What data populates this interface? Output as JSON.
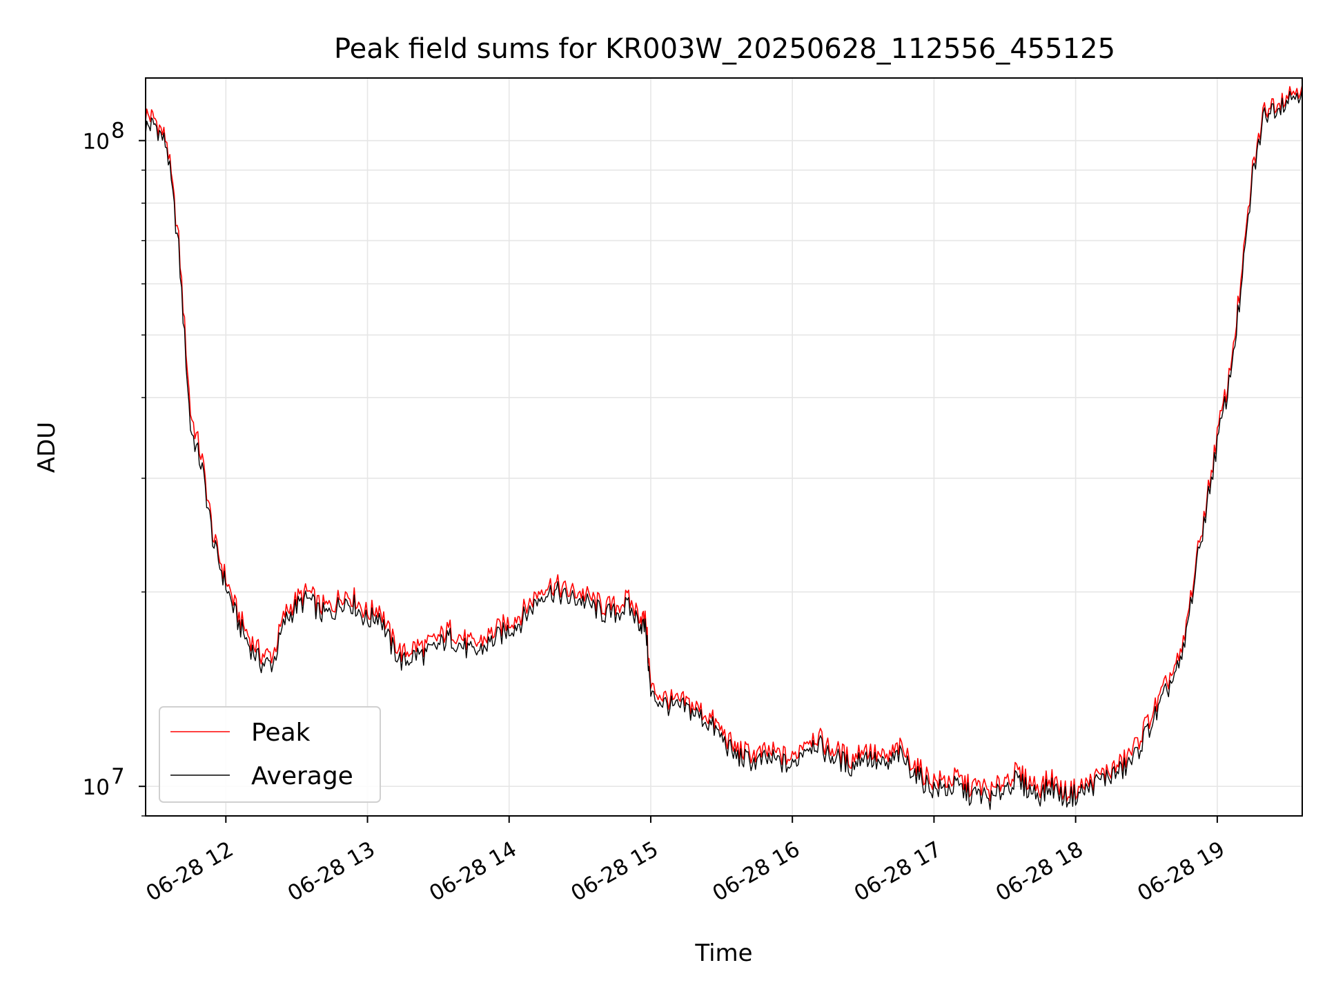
{
  "chart_data": {
    "type": "line",
    "title": "Peak field sums for KR003W_20250628_112556_455125",
    "xlabel": "Time",
    "ylabel": "ADU",
    "yscale": "log",
    "ylim": [
      9000000,
      125000000
    ],
    "xlim": [
      "2025-06-28 11:26",
      "2025-06-28 19:36"
    ],
    "x_ticks": [
      {
        "at": "2025-06-28 12:00",
        "label": "06-28 12"
      },
      {
        "at": "2025-06-28 13:00",
        "label": "06-28 13"
      },
      {
        "at": "2025-06-28 14:00",
        "label": "06-28 14"
      },
      {
        "at": "2025-06-28 15:00",
        "label": "06-28 15"
      },
      {
        "at": "2025-06-28 16:00",
        "label": "06-28 16"
      },
      {
        "at": "2025-06-28 17:00",
        "label": "06-28 17"
      },
      {
        "at": "2025-06-28 18:00",
        "label": "06-28 18"
      },
      {
        "at": "2025-06-28 19:00",
        "label": "06-28 19"
      }
    ],
    "y_major_ticks": [
      {
        "value": 10000000,
        "base": "10",
        "exp": "7"
      },
      {
        "value": 100000000,
        "base": "10",
        "exp": "8"
      }
    ],
    "grid": true,
    "legend_position": "lower-left",
    "x": [
      "2025-06-28 11:26",
      "2025-06-28 11:30",
      "2025-06-28 11:35",
      "2025-06-28 11:40",
      "2025-06-28 11:45",
      "2025-06-28 11:50",
      "2025-06-28 11:55",
      "2025-06-28 12:00",
      "2025-06-28 12:05",
      "2025-06-28 12:10",
      "2025-06-28 12:15",
      "2025-06-28 12:20",
      "2025-06-28 12:25",
      "2025-06-28 12:30",
      "2025-06-28 12:35",
      "2025-06-28 12:40",
      "2025-06-28 12:45",
      "2025-06-28 12:50",
      "2025-06-28 12:55",
      "2025-06-28 13:00",
      "2025-06-28 13:05",
      "2025-06-28 13:10",
      "2025-06-28 13:15",
      "2025-06-28 13:20",
      "2025-06-28 13:25",
      "2025-06-28 13:30",
      "2025-06-28 13:35",
      "2025-06-28 13:40",
      "2025-06-28 13:45",
      "2025-06-28 13:50",
      "2025-06-28 13:55",
      "2025-06-28 14:00",
      "2025-06-28 14:05",
      "2025-06-28 14:10",
      "2025-06-28 14:15",
      "2025-06-28 14:20",
      "2025-06-28 14:25",
      "2025-06-28 14:30",
      "2025-06-28 14:35",
      "2025-06-28 14:40",
      "2025-06-28 14:45",
      "2025-06-28 14:50",
      "2025-06-28 14:55",
      "2025-06-28 14:58",
      "2025-06-28 15:00",
      "2025-06-28 15:05",
      "2025-06-28 15:10",
      "2025-06-28 15:15",
      "2025-06-28 15:20",
      "2025-06-28 15:25",
      "2025-06-28 15:30",
      "2025-06-28 15:35",
      "2025-06-28 15:40",
      "2025-06-28 15:45",
      "2025-06-28 15:50",
      "2025-06-28 15:55",
      "2025-06-28 16:00",
      "2025-06-28 16:05",
      "2025-06-28 16:10",
      "2025-06-28 16:15",
      "2025-06-28 16:20",
      "2025-06-28 16:25",
      "2025-06-28 16:30",
      "2025-06-28 16:35",
      "2025-06-28 16:40",
      "2025-06-28 16:45",
      "2025-06-28 16:50",
      "2025-06-28 16:55",
      "2025-06-28 17:00",
      "2025-06-28 17:05",
      "2025-06-28 17:10",
      "2025-06-28 17:15",
      "2025-06-28 17:20",
      "2025-06-28 17:25",
      "2025-06-28 17:30",
      "2025-06-28 17:35",
      "2025-06-28 17:40",
      "2025-06-28 17:45",
      "2025-06-28 17:50",
      "2025-06-28 17:55",
      "2025-06-28 18:00",
      "2025-06-28 18:05",
      "2025-06-28 18:10",
      "2025-06-28 18:15",
      "2025-06-28 18:20",
      "2025-06-28 18:25",
      "2025-06-28 18:30",
      "2025-06-28 18:35",
      "2025-06-28 18:40",
      "2025-06-28 18:45",
      "2025-06-28 18:50",
      "2025-06-28 18:55",
      "2025-06-28 19:00",
      "2025-06-28 19:05",
      "2025-06-28 19:10",
      "2025-06-28 19:15",
      "2025-06-28 19:20",
      "2025-06-28 19:25",
      "2025-06-28 19:30",
      "2025-06-28 19:36"
    ],
    "series": [
      {
        "name": "Peak",
        "color": "#ff0000",
        "values": [
          110000000,
          108000000,
          100000000,
          70000000,
          38000000,
          32000000,
          24000000,
          21000000,
          18500000,
          17000000,
          16000000,
          16000000,
          18500000,
          19500000,
          20000000,
          19000000,
          19000000,
          20000000,
          19500000,
          18500000,
          19000000,
          17000000,
          16000000,
          16500000,
          16500000,
          17000000,
          17500000,
          17000000,
          16500000,
          17000000,
          17500000,
          18000000,
          18500000,
          19500000,
          20500000,
          20500000,
          20000000,
          20000000,
          19500000,
          19000000,
          19000000,
          19500000,
          18500000,
          18000000,
          14200000,
          13800000,
          13500000,
          13500000,
          13200000,
          12800000,
          12200000,
          11500000,
          11300000,
          11200000,
          11300000,
          11200000,
          11000000,
          11800000,
          12000000,
          11500000,
          11300000,
          11000000,
          11500000,
          11200000,
          11000000,
          11500000,
          11000000,
          10500000,
          10200000,
          10200000,
          10300000,
          10000000,
          10000000,
          9800000,
          10300000,
          10500000,
          10200000,
          10000000,
          10300000,
          9800000,
          9900000,
          10100000,
          10400000,
          10600000,
          10900000,
          11500000,
          12500000,
          13500000,
          14800000,
          16000000,
          21000000,
          27000000,
          35000000,
          43000000,
          60000000,
          90000000,
          112000000,
          115000000,
          118000000,
          122000000
        ]
      },
      {
        "name": "Average",
        "color": "#000000",
        "values": [
          105000000,
          106000000,
          98000000,
          68000000,
          36000000,
          31000000,
          23500000,
          20500000,
          18000000,
          16500000,
          15500000,
          15500000,
          18000000,
          19000000,
          19500000,
          18500000,
          18500000,
          19500000,
          19000000,
          18000000,
          18500000,
          16500000,
          15500000,
          16000000,
          16000000,
          16500000,
          17000000,
          16500000,
          16000000,
          16500000,
          17000000,
          17500000,
          18000000,
          19000000,
          20000000,
          20000000,
          19500000,
          19500000,
          19000000,
          18500000,
          18500000,
          19000000,
          18000000,
          17500000,
          13800000,
          13500000,
          13200000,
          13200000,
          12900000,
          12500000,
          11900000,
          11200000,
          11000000,
          10900000,
          11000000,
          10900000,
          10700000,
          11500000,
          11700000,
          11200000,
          11000000,
          10700000,
          11200000,
          10900000,
          10700000,
          11200000,
          10700000,
          10200000,
          9900000,
          9900000,
          10000000,
          9700000,
          9700000,
          9500000,
          10000000,
          10200000,
          9900000,
          9700000,
          10000000,
          9600000,
          9700000,
          9900000,
          10200000,
          10400000,
          10600000,
          11100000,
          12100000,
          13100000,
          14400000,
          15600000,
          20500000,
          26500000,
          34000000,
          42000000,
          58000000,
          88000000,
          110000000,
          113000000,
          116000000,
          120000000
        ]
      }
    ]
  }
}
